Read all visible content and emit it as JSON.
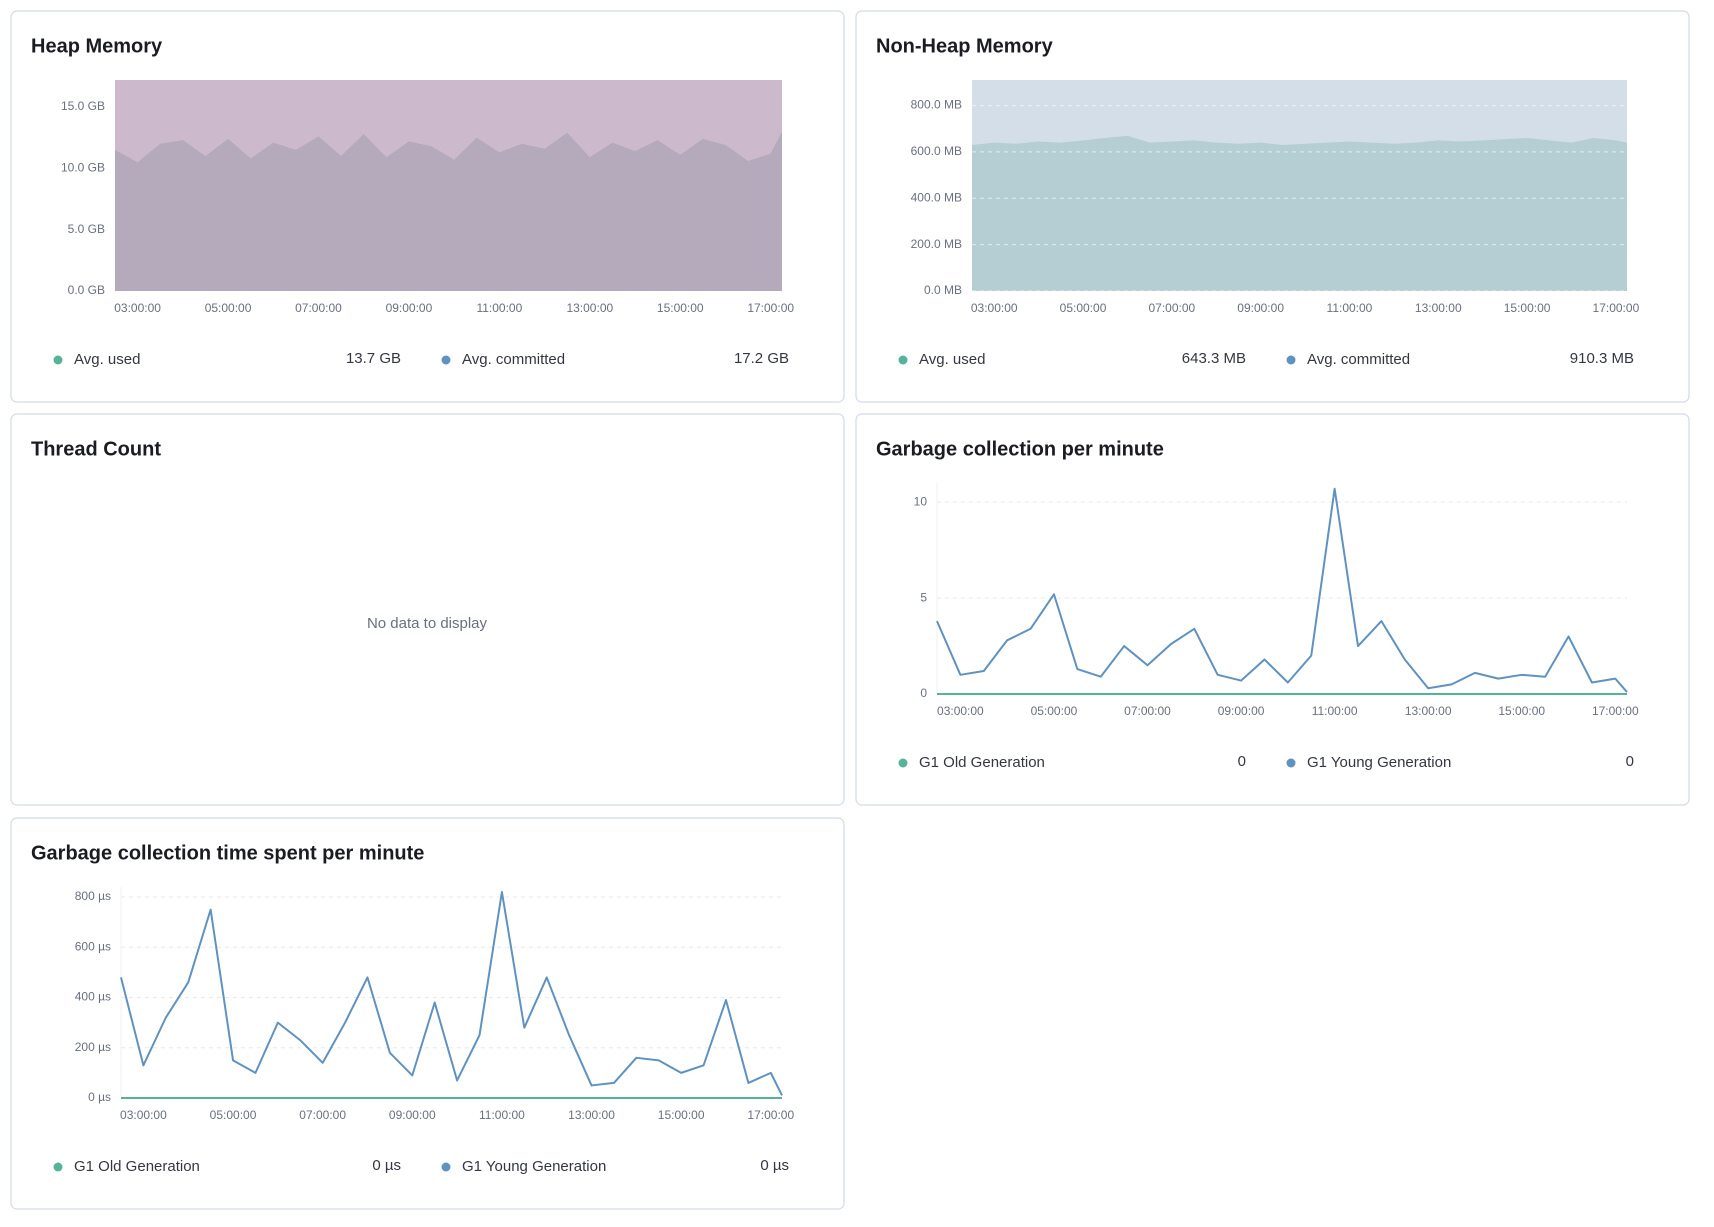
{
  "chart_data": [
    {
      "type": "area",
      "title": "Heap Memory",
      "x": [
        "02:30:00",
        "03:00:00",
        "03:30:00",
        "04:00:00",
        "04:30:00",
        "05:00:00",
        "05:30:00",
        "06:00:00",
        "06:30:00",
        "07:00:00",
        "07:30:00",
        "08:00:00",
        "08:30:00",
        "09:00:00",
        "09:30:00",
        "10:00:00",
        "10:30:00",
        "11:00:00",
        "11:30:00",
        "12:00:00",
        "12:30:00",
        "13:00:00",
        "13:30:00",
        "14:00:00",
        "14:30:00",
        "15:00:00",
        "15:30:00",
        "16:00:00",
        "16:30:00",
        "17:00:00",
        "17:15:00"
      ],
      "xlim": [
        "02:30:00",
        "17:15:00"
      ],
      "xticks": [
        "03:00:00",
        "05:00:00",
        "07:00:00",
        "09:00:00",
        "11:00:00",
        "13:00:00",
        "15:00:00",
        "17:00:00"
      ],
      "ylim": [
        0,
        17.2
      ],
      "yticks": [
        {
          "value": 0,
          "label": "0.0 GB"
        },
        {
          "value": 5,
          "label": "5.0 GB"
        },
        {
          "value": 10,
          "label": "10.0 GB"
        },
        {
          "value": 15,
          "label": "15.0 GB"
        }
      ],
      "grid": false,
      "series": [
        {
          "name": "Avg. used",
          "color": "#54b399",
          "fill": "#b4aabb",
          "summary": {
            "value": 13.7,
            "label": "13.7 GB"
          },
          "values": [
            11.5,
            10.5,
            12.0,
            12.3,
            11.0,
            12.4,
            10.8,
            12.1,
            11.5,
            12.6,
            11.0,
            12.8,
            10.9,
            12.2,
            11.8,
            10.7,
            12.5,
            11.3,
            12.0,
            11.6,
            12.9,
            10.9,
            12.1,
            11.4,
            12.3,
            11.1,
            12.4,
            11.9,
            10.6,
            11.2,
            13.0
          ]
        },
        {
          "name": "Avg. committed",
          "color": "#6092c0",
          "fill": "#cdb9cc",
          "summary": {
            "value": 17.2,
            "label": "17.2 GB"
          },
          "values": [
            17.2,
            17.2,
            17.2,
            17.2,
            17.2,
            17.2,
            17.2,
            17.2,
            17.2,
            17.2,
            17.2,
            17.2,
            17.2,
            17.2,
            17.2,
            17.2,
            17.2,
            17.2,
            17.2,
            17.2,
            17.2,
            17.2,
            17.2,
            17.2,
            17.2,
            17.2,
            17.2,
            17.2,
            17.2,
            17.2,
            17.2
          ]
        }
      ]
    },
    {
      "type": "area",
      "title": "Non-Heap Memory",
      "x": [
        "02:30:00",
        "03:00:00",
        "03:30:00",
        "04:00:00",
        "04:30:00",
        "05:00:00",
        "05:30:00",
        "06:00:00",
        "06:30:00",
        "07:00:00",
        "07:30:00",
        "08:00:00",
        "08:30:00",
        "09:00:00",
        "09:30:00",
        "10:00:00",
        "10:30:00",
        "11:00:00",
        "11:30:00",
        "12:00:00",
        "12:30:00",
        "13:00:00",
        "13:30:00",
        "14:00:00",
        "14:30:00",
        "15:00:00",
        "15:30:00",
        "16:00:00",
        "16:30:00",
        "17:00:00",
        "17:15:00"
      ],
      "xlim": [
        "02:30:00",
        "17:15:00"
      ],
      "xticks": [
        "03:00:00",
        "05:00:00",
        "07:00:00",
        "09:00:00",
        "11:00:00",
        "13:00:00",
        "15:00:00",
        "17:00:00"
      ],
      "ylim": [
        0,
        910.3
      ],
      "yticks": [
        {
          "value": 0,
          "label": "0.0 MB"
        },
        {
          "value": 200,
          "label": "200.0 MB"
        },
        {
          "value": 400,
          "label": "400.0 MB"
        },
        {
          "value": 600,
          "label": "600.0 MB"
        },
        {
          "value": 800,
          "label": "800.0 MB"
        }
      ],
      "grid": true,
      "series": [
        {
          "name": "Avg. used",
          "color": "#54b399",
          "fill": "#b5ced4",
          "summary": {
            "value": 643.3,
            "label": "643.3 MB"
          },
          "values": [
            630,
            640,
            635,
            645,
            640,
            650,
            660,
            670,
            640,
            645,
            650,
            640,
            635,
            640,
            630,
            635,
            640,
            645,
            640,
            635,
            640,
            650,
            645,
            650,
            655,
            660,
            650,
            640,
            660,
            650,
            640
          ]
        },
        {
          "name": "Avg. committed",
          "color": "#6092c0",
          "fill": "#d3dee9",
          "summary": {
            "value": 910.3,
            "label": "910.3 MB"
          },
          "values": [
            910.3,
            910.3,
            910.3,
            910.3,
            910.3,
            910.3,
            910.3,
            910.3,
            910.3,
            910.3,
            910.3,
            910.3,
            910.3,
            910.3,
            910.3,
            910.3,
            910.3,
            910.3,
            910.3,
            910.3,
            910.3,
            910.3,
            910.3,
            910.3,
            910.3,
            910.3,
            910.3,
            910.3,
            910.3,
            910.3,
            910.3
          ]
        }
      ]
    },
    {
      "type": "empty",
      "title": "Thread Count",
      "message": "No data to display"
    },
    {
      "type": "line",
      "title": "Garbage collection per minute",
      "x": [
        "02:30:00",
        "03:00:00",
        "03:30:00",
        "04:00:00",
        "04:30:00",
        "05:00:00",
        "05:30:00",
        "06:00:00",
        "06:30:00",
        "07:00:00",
        "07:30:00",
        "08:00:00",
        "08:30:00",
        "09:00:00",
        "09:30:00",
        "10:00:00",
        "10:30:00",
        "11:00:00",
        "11:30:00",
        "12:00:00",
        "12:30:00",
        "13:00:00",
        "13:30:00",
        "14:00:00",
        "14:30:00",
        "15:00:00",
        "15:30:00",
        "16:00:00",
        "16:30:00",
        "17:00:00",
        "17:15:00"
      ],
      "xlim": [
        "02:30:00",
        "17:15:00"
      ],
      "xticks": [
        "03:00:00",
        "05:00:00",
        "07:00:00",
        "09:00:00",
        "11:00:00",
        "13:00:00",
        "15:00:00",
        "17:00:00"
      ],
      "ylim": [
        0,
        11
      ],
      "yticks": [
        0,
        5,
        10
      ],
      "grid": true,
      "series": [
        {
          "name": "G1 Old Generation",
          "color": "#54b399",
          "summary": 0,
          "values": [
            0,
            0,
            0,
            0,
            0,
            0,
            0,
            0,
            0,
            0,
            0,
            0,
            0,
            0,
            0,
            0,
            0,
            0,
            0,
            0,
            0,
            0,
            0,
            0,
            0,
            0,
            0,
            0,
            0,
            0,
            0
          ]
        },
        {
          "name": "G1 Young Generation",
          "color": "#6092c0",
          "summary": 0,
          "values": [
            3.8,
            1.0,
            1.2,
            2.8,
            3.4,
            5.2,
            1.3,
            0.9,
            2.5,
            1.5,
            2.6,
            3.4,
            1.0,
            0.7,
            1.8,
            0.6,
            2.0,
            10.7,
            2.5,
            3.8,
            1.8,
            0.3,
            0.5,
            1.1,
            0.8,
            1.0,
            0.9,
            3.0,
            0.6,
            0.8,
            0.1
          ]
        }
      ]
    },
    {
      "type": "line",
      "title": "Garbage collection time spent per minute",
      "x": [
        "02:30:00",
        "03:00:00",
        "03:30:00",
        "04:00:00",
        "04:30:00",
        "05:00:00",
        "05:30:00",
        "06:00:00",
        "06:30:00",
        "07:00:00",
        "07:30:00",
        "08:00:00",
        "08:30:00",
        "09:00:00",
        "09:30:00",
        "10:00:00",
        "10:30:00",
        "11:00:00",
        "11:30:00",
        "12:00:00",
        "12:30:00",
        "13:00:00",
        "13:30:00",
        "14:00:00",
        "14:30:00",
        "15:00:00",
        "15:30:00",
        "16:00:00",
        "16:30:00",
        "17:00:00",
        "17:15:00"
      ],
      "xlim": [
        "02:30:00",
        "17:15:00"
      ],
      "xticks": [
        "03:00:00",
        "05:00:00",
        "07:00:00",
        "09:00:00",
        "11:00:00",
        "13:00:00",
        "15:00:00",
        "17:00:00"
      ],
      "ylim": [
        0,
        840
      ],
      "yticks": [
        {
          "value": 0,
          "label": "0 µs"
        },
        {
          "value": 200,
          "label": "200 µs"
        },
        {
          "value": 400,
          "label": "400 µs"
        },
        {
          "value": 600,
          "label": "600 µs"
        },
        {
          "value": 800,
          "label": "800 µs"
        }
      ],
      "grid": true,
      "series": [
        {
          "name": "G1 Old Generation",
          "color": "#54b399",
          "summary": {
            "value": 0,
            "label": "0 µs"
          },
          "values": [
            0,
            0,
            0,
            0,
            0,
            0,
            0,
            0,
            0,
            0,
            0,
            0,
            0,
            0,
            0,
            0,
            0,
            0,
            0,
            0,
            0,
            0,
            0,
            0,
            0,
            0,
            0,
            0,
            0,
            0,
            0
          ]
        },
        {
          "name": "G1 Young Generation",
          "color": "#6092c0",
          "summary": {
            "value": 0,
            "label": "0 µs"
          },
          "values": [
            480,
            130,
            320,
            460,
            750,
            150,
            100,
            300,
            230,
            140,
            300,
            480,
            180,
            90,
            380,
            70,
            250,
            820,
            280,
            480,
            250,
            50,
            60,
            160,
            150,
            100,
            130,
            390,
            60,
            100,
            10
          ]
        }
      ]
    }
  ]
}
